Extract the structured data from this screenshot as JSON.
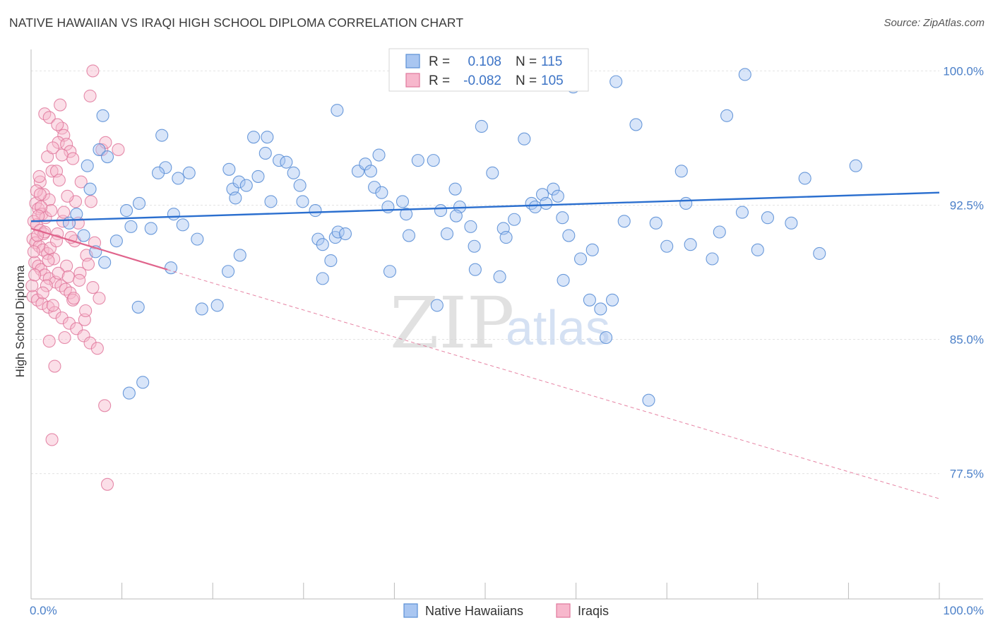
{
  "header": {
    "title": "NATIVE HAWAIIAN VS IRAQI HIGH SCHOOL DIPLOMA CORRELATION CHART",
    "source": "Source: ZipAtlas.com"
  },
  "watermark": {
    "zip": "ZIP",
    "atlas": "atlas"
  },
  "legend": {
    "r_label": "R =",
    "n_label": "N =",
    "series": [
      {
        "name": "Native Hawaiians",
        "r": "0.108",
        "n": "115",
        "fill": "#a9c6f1",
        "stroke": "#5b8fd6"
      },
      {
        "name": "Iraqis",
        "r": "-0.082",
        "n": "105",
        "fill": "#f7b7cc",
        "stroke": "#e0789c"
      }
    ]
  },
  "chart_data": {
    "type": "scatter",
    "title": "NATIVE HAWAIIAN VS IRAQI HIGH SCHOOL DIPLOMA CORRELATION CHART",
    "xlabel": "",
    "ylabel": "High School Diploma",
    "xlim": [
      0,
      100
    ],
    "ylim": [
      70.5,
      101.2
    ],
    "x_tick_labels": [
      "0.0%",
      "100.0%"
    ],
    "y_ticks": [
      100.0,
      92.5,
      85.0,
      77.5
    ],
    "y_tick_labels": [
      "100.0%",
      "92.5%",
      "85.0%",
      "77.5%"
    ],
    "grid": true,
    "legend_position": "top-center",
    "colors": {
      "blue_fill": "#a9c6f1",
      "blue_stroke": "#5b8fd6",
      "blue_line": "#2b6fcf",
      "pink_fill": "#f7b7cc",
      "pink_stroke": "#e0789c",
      "pink_line": "#e0648c",
      "axis": "#bbbbbb",
      "grid": "#e3e3e3"
    },
    "series": [
      {
        "name": "Native Hawaiians",
        "r": 0.108,
        "n": 115,
        "trend": {
          "x0": 0,
          "y0": 91.6,
          "x1": 100,
          "y1": 93.2
        },
        "points": [
          [
            6.2,
            94.7
          ],
          [
            7.5,
            95.6
          ],
          [
            8.4,
            95.2
          ],
          [
            10.5,
            92.2
          ],
          [
            14.4,
            96.4
          ],
          [
            14.8,
            94.6
          ],
          [
            14.0,
            94.3
          ],
          [
            11.0,
            91.3
          ],
          [
            16.2,
            94.0
          ],
          [
            15.7,
            92.0
          ],
          [
            16.7,
            91.4
          ],
          [
            18.3,
            90.6
          ],
          [
            17.4,
            94.3
          ],
          [
            21.8,
            94.5
          ],
          [
            22.2,
            93.4
          ],
          [
            22.5,
            92.9
          ],
          [
            22.9,
            93.8
          ],
          [
            23.7,
            93.6
          ],
          [
            24.5,
            96.3
          ],
          [
            25.8,
            95.4
          ],
          [
            25.0,
            94.1
          ],
          [
            26.4,
            92.7
          ],
          [
            26.0,
            96.3
          ],
          [
            27.3,
            95.0
          ],
          [
            28.1,
            94.9
          ],
          [
            28.9,
            94.3
          ],
          [
            29.6,
            93.6
          ],
          [
            29.9,
            92.7
          ],
          [
            31.3,
            92.2
          ],
          [
            31.6,
            90.6
          ],
          [
            32.1,
            90.3
          ],
          [
            33.5,
            90.7
          ],
          [
            33.8,
            91.0
          ],
          [
            34.6,
            90.9
          ],
          [
            36.0,
            94.4
          ],
          [
            36.8,
            94.8
          ],
          [
            37.4,
            94.4
          ],
          [
            37.8,
            93.5
          ],
          [
            38.3,
            95.3
          ],
          [
            38.6,
            93.2
          ],
          [
            39.3,
            92.4
          ],
          [
            40.9,
            92.7
          ],
          [
            41.3,
            92.0
          ],
          [
            41.6,
            90.8
          ],
          [
            42.6,
            95.0
          ],
          [
            44.3,
            95.0
          ],
          [
            45.1,
            92.2
          ],
          [
            45.8,
            90.9
          ],
          [
            46.7,
            93.4
          ],
          [
            47.2,
            92.4
          ],
          [
            48.4,
            91.3
          ],
          [
            48.8,
            90.2
          ],
          [
            49.6,
            96.9
          ],
          [
            50.8,
            94.3
          ],
          [
            52.0,
            91.2
          ],
          [
            52.3,
            90.7
          ],
          [
            53.2,
            91.7
          ],
          [
            54.3,
            96.2
          ],
          [
            55.1,
            92.6
          ],
          [
            55.5,
            92.4
          ],
          [
            56.3,
            93.1
          ],
          [
            56.7,
            92.6
          ],
          [
            57.5,
            93.4
          ],
          [
            58.0,
            93.0
          ],
          [
            58.5,
            91.8
          ],
          [
            59.2,
            90.8
          ],
          [
            60.5,
            89.5
          ],
          [
            61.5,
            87.2
          ],
          [
            62.7,
            86.7
          ],
          [
            64.0,
            87.2
          ],
          [
            63.3,
            85.1
          ],
          [
            66.6,
            97.0
          ],
          [
            68.8,
            91.5
          ],
          [
            70.0,
            90.2
          ],
          [
            71.6,
            94.4
          ],
          [
            72.1,
            92.6
          ],
          [
            72.6,
            90.3
          ],
          [
            75.0,
            89.5
          ],
          [
            75.8,
            91.0
          ],
          [
            76.6,
            97.5
          ],
          [
            78.3,
            92.1
          ],
          [
            80.0,
            90.0
          ],
          [
            81.1,
            91.8
          ],
          [
            83.7,
            91.5
          ],
          [
            85.2,
            94.0
          ],
          [
            86.8,
            89.8
          ],
          [
            90.8,
            94.7
          ],
          [
            11.9,
            92.6
          ],
          [
            7.9,
            97.5
          ],
          [
            13.2,
            91.2
          ],
          [
            20.5,
            86.9
          ],
          [
            18.8,
            86.7
          ],
          [
            11.8,
            86.8
          ],
          [
            12.3,
            82.6
          ],
          [
            10.8,
            82.0
          ],
          [
            15.4,
            89.0
          ],
          [
            21.7,
            88.8
          ],
          [
            32.1,
            88.4
          ],
          [
            39.5,
            88.8
          ],
          [
            48.9,
            88.9
          ],
          [
            51.6,
            88.5
          ],
          [
            44.7,
            86.9
          ],
          [
            58.6,
            88.3
          ],
          [
            68.0,
            81.6
          ],
          [
            61.8,
            90.0
          ],
          [
            65.3,
            91.6
          ],
          [
            4.2,
            91.5
          ],
          [
            5.0,
            92.0
          ],
          [
            5.8,
            90.8
          ],
          [
            7.1,
            89.9
          ],
          [
            8.1,
            89.3
          ],
          [
            9.4,
            90.5
          ],
          [
            6.5,
            93.4
          ],
          [
            23.0,
            89.7
          ],
          [
            33.0,
            89.4
          ],
          [
            46.8,
            91.9
          ],
          [
            78.6,
            99.8
          ],
          [
            59.7,
            99.1
          ],
          [
            64.4,
            99.4
          ],
          [
            33.7,
            97.8
          ]
        ]
      },
      {
        "name": "Iraqis",
        "r": -0.082,
        "n": 105,
        "trend_solid": {
          "x0": 0,
          "y0": 91.2,
          "x1": 15,
          "y1": 88.9
        },
        "trend_dashed": {
          "x0": 15,
          "y0": 88.9,
          "x1": 100,
          "y1": 76.1
        },
        "points": [
          [
            1.5,
            97.6
          ],
          [
            2.0,
            97.4
          ],
          [
            3.2,
            98.1
          ],
          [
            3.4,
            96.8
          ],
          [
            3.6,
            96.4
          ],
          [
            3.0,
            96.0
          ],
          [
            3.9,
            95.9
          ],
          [
            4.3,
            95.5
          ],
          [
            4.6,
            95.1
          ],
          [
            1.8,
            95.2
          ],
          [
            2.3,
            94.4
          ],
          [
            2.8,
            94.4
          ],
          [
            6.5,
            98.6
          ],
          [
            7.8,
            95.6
          ],
          [
            8.2,
            96.0
          ],
          [
            9.6,
            95.6
          ],
          [
            5.5,
            93.8
          ],
          [
            4.9,
            92.7
          ],
          [
            1.0,
            93.8
          ],
          [
            1.4,
            93.1
          ],
          [
            2.0,
            92.8
          ],
          [
            0.5,
            92.6
          ],
          [
            0.8,
            92.3
          ],
          [
            1.2,
            92.0
          ],
          [
            1.6,
            91.8
          ],
          [
            0.3,
            91.6
          ],
          [
            0.6,
            91.4
          ],
          [
            1.0,
            91.1
          ],
          [
            1.4,
            90.9
          ],
          [
            0.2,
            90.6
          ],
          [
            0.5,
            90.4
          ],
          [
            0.9,
            90.2
          ],
          [
            1.3,
            90.0
          ],
          [
            1.8,
            89.8
          ],
          [
            2.5,
            89.5
          ],
          [
            0.4,
            89.3
          ],
          [
            0.8,
            89.1
          ],
          [
            1.1,
            88.9
          ],
          [
            1.5,
            88.6
          ],
          [
            2.0,
            88.4
          ],
          [
            2.7,
            88.2
          ],
          [
            3.3,
            88.0
          ],
          [
            3.8,
            87.8
          ],
          [
            4.3,
            87.6
          ],
          [
            0.2,
            87.4
          ],
          [
            0.7,
            87.2
          ],
          [
            1.2,
            87.0
          ],
          [
            1.9,
            86.8
          ],
          [
            2.6,
            86.5
          ],
          [
            3.4,
            86.2
          ],
          [
            4.2,
            85.9
          ],
          [
            5.0,
            85.6
          ],
          [
            5.8,
            85.2
          ],
          [
            6.5,
            84.8
          ],
          [
            7.3,
            84.5
          ],
          [
            2.0,
            84.9
          ],
          [
            2.6,
            83.5
          ],
          [
            8.1,
            81.3
          ],
          [
            2.3,
            79.4
          ],
          [
            8.4,
            76.9
          ],
          [
            6.8,
            100.0
          ],
          [
            4.8,
            90.5
          ],
          [
            5.4,
            88.7
          ],
          [
            6.1,
            89.7
          ],
          [
            6.8,
            87.9
          ],
          [
            7.5,
            87.3
          ],
          [
            3.9,
            89.1
          ],
          [
            4.4,
            90.7
          ],
          [
            2.9,
            90.9
          ],
          [
            3.5,
            91.6
          ],
          [
            0.6,
            93.3
          ],
          [
            0.9,
            94.1
          ],
          [
            2.4,
            95.7
          ],
          [
            3.1,
            93.9
          ],
          [
            2.2,
            92.2
          ],
          [
            0.1,
            88.0
          ],
          [
            0.3,
            89.9
          ],
          [
            1.7,
            88.0
          ],
          [
            5.9,
            86.1
          ],
          [
            3.7,
            85.1
          ],
          [
            4.6,
            87.2
          ],
          [
            6.3,
            89.2
          ],
          [
            7.0,
            90.4
          ],
          [
            5.2,
            91.5
          ],
          [
            4.0,
            93.0
          ],
          [
            2.9,
            97.0
          ],
          [
            3.4,
            95.3
          ],
          [
            1.1,
            92.4
          ],
          [
            0.8,
            91.9
          ],
          [
            1.5,
            91.0
          ],
          [
            2.1,
            90.1
          ],
          [
            0.4,
            88.6
          ],
          [
            1.3,
            87.6
          ],
          [
            2.4,
            86.9
          ],
          [
            3.0,
            88.7
          ],
          [
            4.1,
            88.5
          ],
          [
            4.7,
            87.3
          ],
          [
            5.3,
            88.3
          ],
          [
            6.0,
            86.6
          ],
          [
            1.9,
            89.4
          ],
          [
            2.8,
            90.5
          ],
          [
            3.6,
            92.1
          ],
          [
            0.7,
            90.8
          ],
          [
            1.0,
            93.1
          ],
          [
            6.6,
            92.7
          ]
        ]
      }
    ]
  }
}
